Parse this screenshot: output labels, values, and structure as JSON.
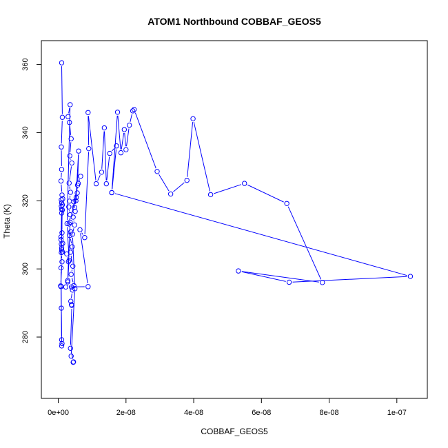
{
  "chart_data": {
    "type": "line",
    "title": "ATOM1 Northbound COBBAF_GEOS5",
    "xlabel": "COBBAF_GEOS5",
    "ylabel": "Theta (K)",
    "xlim": [
      -5e-09,
      1.09e-07
    ],
    "ylim": [
      262,
      367
    ],
    "xticks": [
      0,
      2e-08,
      4e-08,
      6e-08,
      8e-08,
      1e-07
    ],
    "xtick_labels": [
      "0e+00",
      "2e-08",
      "4e-08",
      "6e-08",
      "8e-08",
      "1e-07"
    ],
    "yticks": [
      280,
      300,
      320,
      340,
      360
    ],
    "ytick_labels": [
      "280",
      "300",
      "320",
      "340",
      "360"
    ],
    "grid": false,
    "series_color": "#0000ff",
    "x": [
      1e-09,
      1.2e-09,
      9e-10,
      1e-09,
      8e-10,
      1.1e-09,
      1.3e-09,
      1e-09,
      9e-10,
      1.2e-09,
      1e-09,
      1.1e-09,
      8e-10,
      1.3e-09,
      1e-09,
      1.2e-09,
      9e-10,
      1.1e-09,
      7e-10,
      8e-10,
      9e-10,
      1e-09,
      1.1e-09,
      1e-09,
      8e-10,
      1.2e-09,
      9e-10,
      1e-09,
      8e-10,
      9e-10,
      1e-09,
      2.5e-09,
      3e-09,
      2.8e-09,
      3.2e-09,
      2.6e-09,
      3.5e-09,
      2.9e-09,
      3.3e-09,
      3.8e-09,
      3.4e-09,
      4e-09,
      3.2e-09,
      3.6e-09,
      3.3e-09,
      3.1e-09,
      3.5e-09,
      3.2e-09,
      3.7e-09,
      3.4e-09,
      4.1e-09,
      3.6e-09,
      4.3e-09,
      3.8e-09,
      4.6e-09,
      3.9e-09,
      4.2e-09,
      3.7e-09,
      3.9e-09,
      4e-09,
      3.6e-09,
      4.5e-09,
      4.4e-09,
      3.8e-09,
      4.9e-09,
      4.2e-09,
      4.8e-09,
      4.4e-09,
      5e-09,
      4.6e-09,
      5.3e-09,
      4.8e-09,
      5.6e-09,
      5.2e-09,
      6e-09,
      5.7e-09,
      6.6e-09,
      5.9e-09,
      3.5e-09,
      2.8e-09,
      2.2e-09,
      8.8e-09,
      6.4e-09,
      7.8e-09,
      9e-09,
      8.8e-09,
      1.12e-08,
      1.28e-08,
      1.36e-08,
      1.42e-08,
      1.52e-08,
      1.72e-08,
      1.58e-08,
      1.75e-08,
      1.85e-08,
      1.95e-08,
      2e-08,
      2.1e-08,
      2.2e-08,
      2.24e-08,
      2.92e-08,
      3.32e-08,
      3.8e-08,
      3.98e-08,
      4.5e-08,
      5.5e-08,
      6.75e-08,
      7.8e-08,
      5.32e-08,
      6.82e-08,
      1.04e-07,
      1.58e-08
    ],
    "y": [
      360.5,
      344.5,
      335.8,
      329.2,
      325.8,
      321.7,
      320.6,
      319.4,
      318.4,
      317.3,
      316.4,
      310.6,
      308.6,
      307.5,
      305.6,
      305.0,
      304.8,
      302.1,
      295.0,
      294.8,
      288.5,
      279.2,
      278.1,
      277.4,
      300.3,
      318.8,
      320.3,
      317.5,
      309.4,
      307.3,
      306.2,
      304.4,
      302.1,
      296.6,
      302.5,
      313.3,
      348.2,
      344.7,
      343.0,
      338.2,
      333.2,
      331.1,
      325.2,
      322.5,
      319.9,
      318.2,
      315.9,
      313.2,
      310.9,
      309.8,
      306.5,
      304.9,
      300.8,
      298.4,
      295.1,
      294.7,
      293.8,
      290.5,
      289.5,
      289.3,
      276.7,
      272.7,
      272.6,
      274.4,
      294.2,
      310.2,
      312.9,
      315.2,
      316.9,
      319.7,
      321.0,
      318.1,
      322.3,
      320.0,
      334.6,
      324.6,
      327.2,
      325.1,
      313.7,
      296.2,
      294.7,
      294.8,
      311.5,
      309.2,
      335.3,
      345.9,
      325.0,
      328.4,
      341.4,
      325.0,
      333.9,
      336.1,
      322.4,
      346.0,
      334.1,
      340.9,
      335.0,
      342.2,
      346.4,
      346.8,
      328.6,
      322.0,
      326.0,
      344.1,
      321.8,
      325.1,
      319.2,
      296.0,
      299.4,
      296.1,
      297.8,
      322.4
    ]
  }
}
